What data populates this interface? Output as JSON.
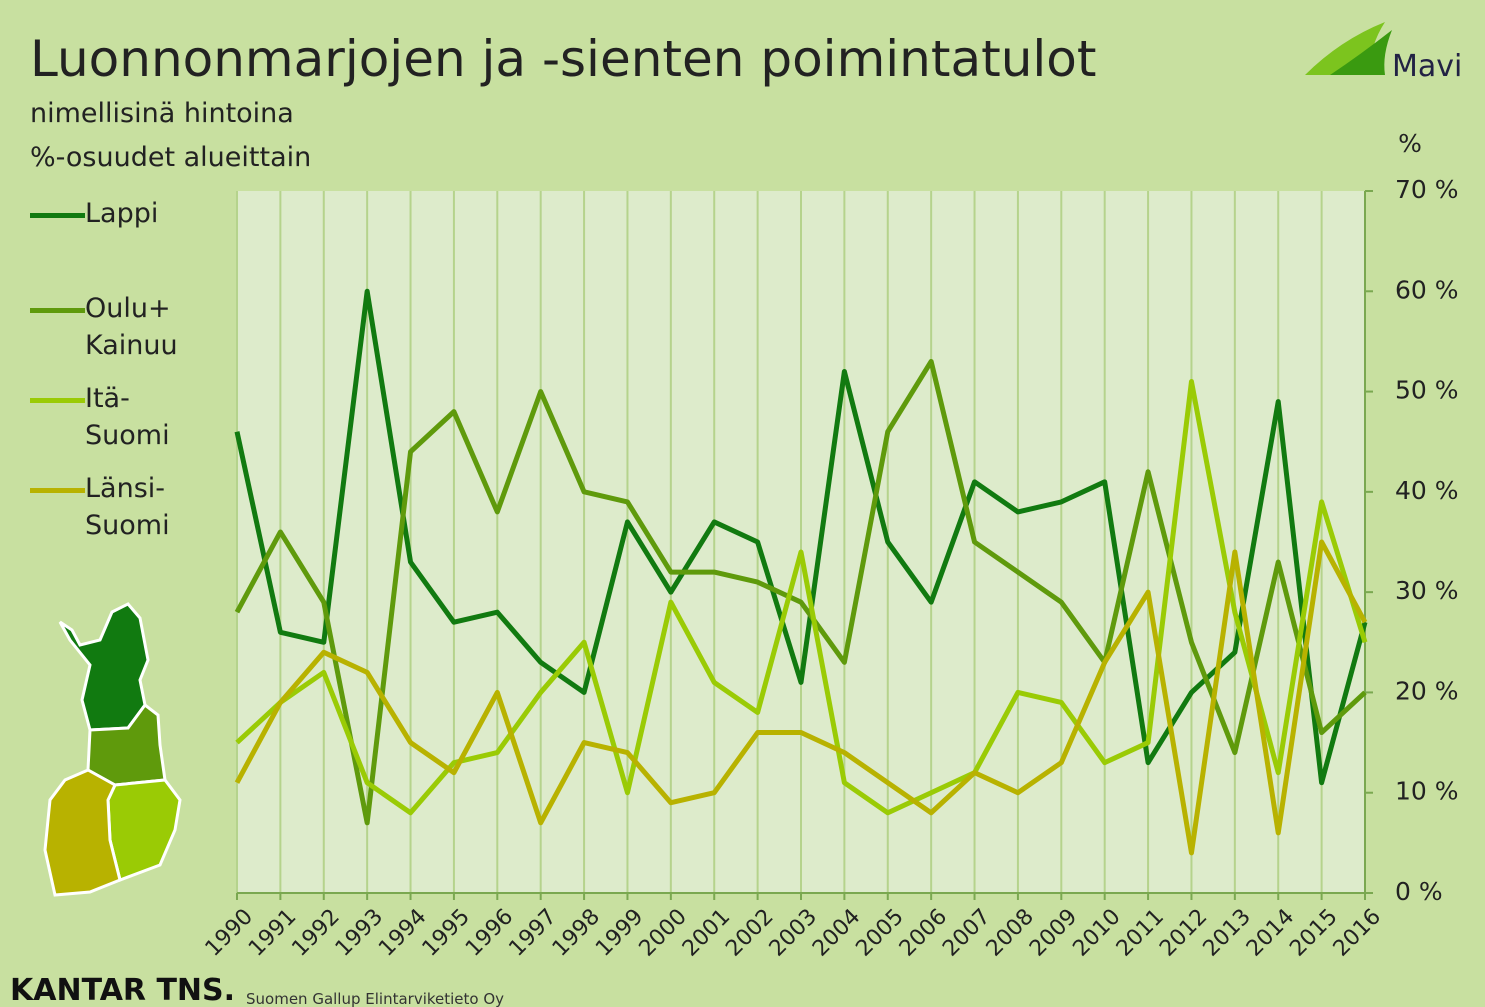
{
  "chart_data": {
    "type": "line",
    "title": "Luonnonmarjojen ja -sienten poimintatulot",
    "subtitle": [
      "nimellisinä hintoina",
      "%-osuudet alueittain"
    ],
    "y_axis_label": "%",
    "logo": "Mavi",
    "footer_brand": "KANTAR TNS.",
    "footer_text": "Suomen Gallup Elintarviketieto Oy",
    "categories": [
      "1990",
      "1991",
      "1992",
      "1993",
      "1994",
      "1995",
      "1996",
      "1997",
      "1998",
      "1999",
      "2000",
      "2001",
      "2002",
      "2003",
      "2004",
      "2005",
      "2006",
      "2007",
      "2008",
      "2009",
      "2010",
      "2011",
      "2012",
      "2013",
      "2014",
      "2015",
      "2016"
    ],
    "series": [
      {
        "name": "Lappi",
        "color": "#117a10",
        "values": [
          46,
          26,
          25,
          60,
          33,
          27,
          28,
          23,
          20,
          37,
          30,
          37,
          35,
          21,
          52,
          35,
          29,
          41,
          38,
          39,
          41,
          13,
          20,
          24,
          49,
          11,
          27
        ]
      },
      {
        "name": "Oulu+ Kainuu",
        "color": "#5f9a0c",
        "values": [
          28,
          36,
          29,
          7,
          44,
          48,
          38,
          50,
          40,
          39,
          32,
          32,
          31,
          29,
          23,
          46,
          53,
          35,
          32,
          29,
          23,
          42,
          25,
          14,
          33,
          16,
          20
        ]
      },
      {
        "name": "Itä-Suomi",
        "color": "#9acb05",
        "values": [
          15,
          19,
          22,
          11,
          8,
          13,
          14,
          20,
          25,
          10,
          29,
          21,
          18,
          34,
          11,
          8,
          10,
          12,
          20,
          19,
          13,
          15,
          51,
          28,
          12,
          39,
          25
        ]
      },
      {
        "name": "Länsi-Suomi",
        "color": "#b8b200",
        "values": [
          11,
          19,
          24,
          22,
          15,
          12,
          20,
          7,
          15,
          14,
          9,
          10,
          16,
          16,
          14,
          11,
          8,
          12,
          10,
          13,
          23,
          30,
          4,
          34,
          6,
          35,
          27
        ]
      }
    ],
    "ylim": [
      0,
      70
    ],
    "yticks": [
      {
        "value": 0,
        "label": "0 %"
      },
      {
        "value": 10,
        "label": "10 %"
      },
      {
        "value": 20,
        "label": "20 %"
      },
      {
        "value": 30,
        "label": "30 %"
      },
      {
        "value": 40,
        "label": "40 %"
      },
      {
        "value": 50,
        "label": "50 %"
      },
      {
        "value": 60,
        "label": "60 %"
      },
      {
        "value": 70,
        "label": "70 %"
      }
    ],
    "grid": "vertical",
    "y_axis_side": "right"
  }
}
